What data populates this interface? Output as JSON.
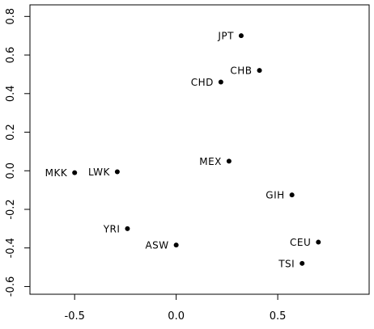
{
  "chart_data": {
    "type": "scatter",
    "title": "",
    "xlabel": "",
    "ylabel": "",
    "xlim": [
      -0.72,
      0.95
    ],
    "ylim": [
      -0.64,
      0.86
    ],
    "grid": false,
    "legend": "none",
    "x_ticks": [
      -0.5,
      0.0,
      0.5
    ],
    "x_tick_labels": [
      "-0.5",
      "0.0",
      "0.5"
    ],
    "y_ticks": [
      -0.6,
      -0.4,
      -0.2,
      0.0,
      0.2,
      0.4,
      0.6,
      0.8
    ],
    "y_tick_labels": [
      "-0.6",
      "-0.4",
      "-0.2",
      "0.0",
      "0.2",
      "0.4",
      "0.6",
      "0.8"
    ],
    "points": [
      {
        "label": "JPT",
        "x": 0.32,
        "y": 0.7,
        "label_side": "left"
      },
      {
        "label": "CHB",
        "x": 0.41,
        "y": 0.52,
        "label_side": "left"
      },
      {
        "label": "CHD",
        "x": 0.22,
        "y": 0.46,
        "label_side": "left"
      },
      {
        "label": "MEX",
        "x": 0.26,
        "y": 0.05,
        "label_side": "left"
      },
      {
        "label": "MKK",
        "x": -0.5,
        "y": -0.01,
        "label_side": "left"
      },
      {
        "label": "LWK",
        "x": -0.29,
        "y": -0.005,
        "label_side": "left"
      },
      {
        "label": "GIH",
        "x": 0.57,
        "y": -0.125,
        "label_side": "left"
      },
      {
        "label": "YRI",
        "x": -0.24,
        "y": -0.3,
        "label_side": "left"
      },
      {
        "label": "ASW",
        "x": 0.0,
        "y": -0.385,
        "label_side": "left"
      },
      {
        "label": "CEU",
        "x": 0.7,
        "y": -0.37,
        "label_side": "left"
      },
      {
        "label": "TSI",
        "x": 0.62,
        "y": -0.48,
        "label_side": "left"
      }
    ]
  }
}
